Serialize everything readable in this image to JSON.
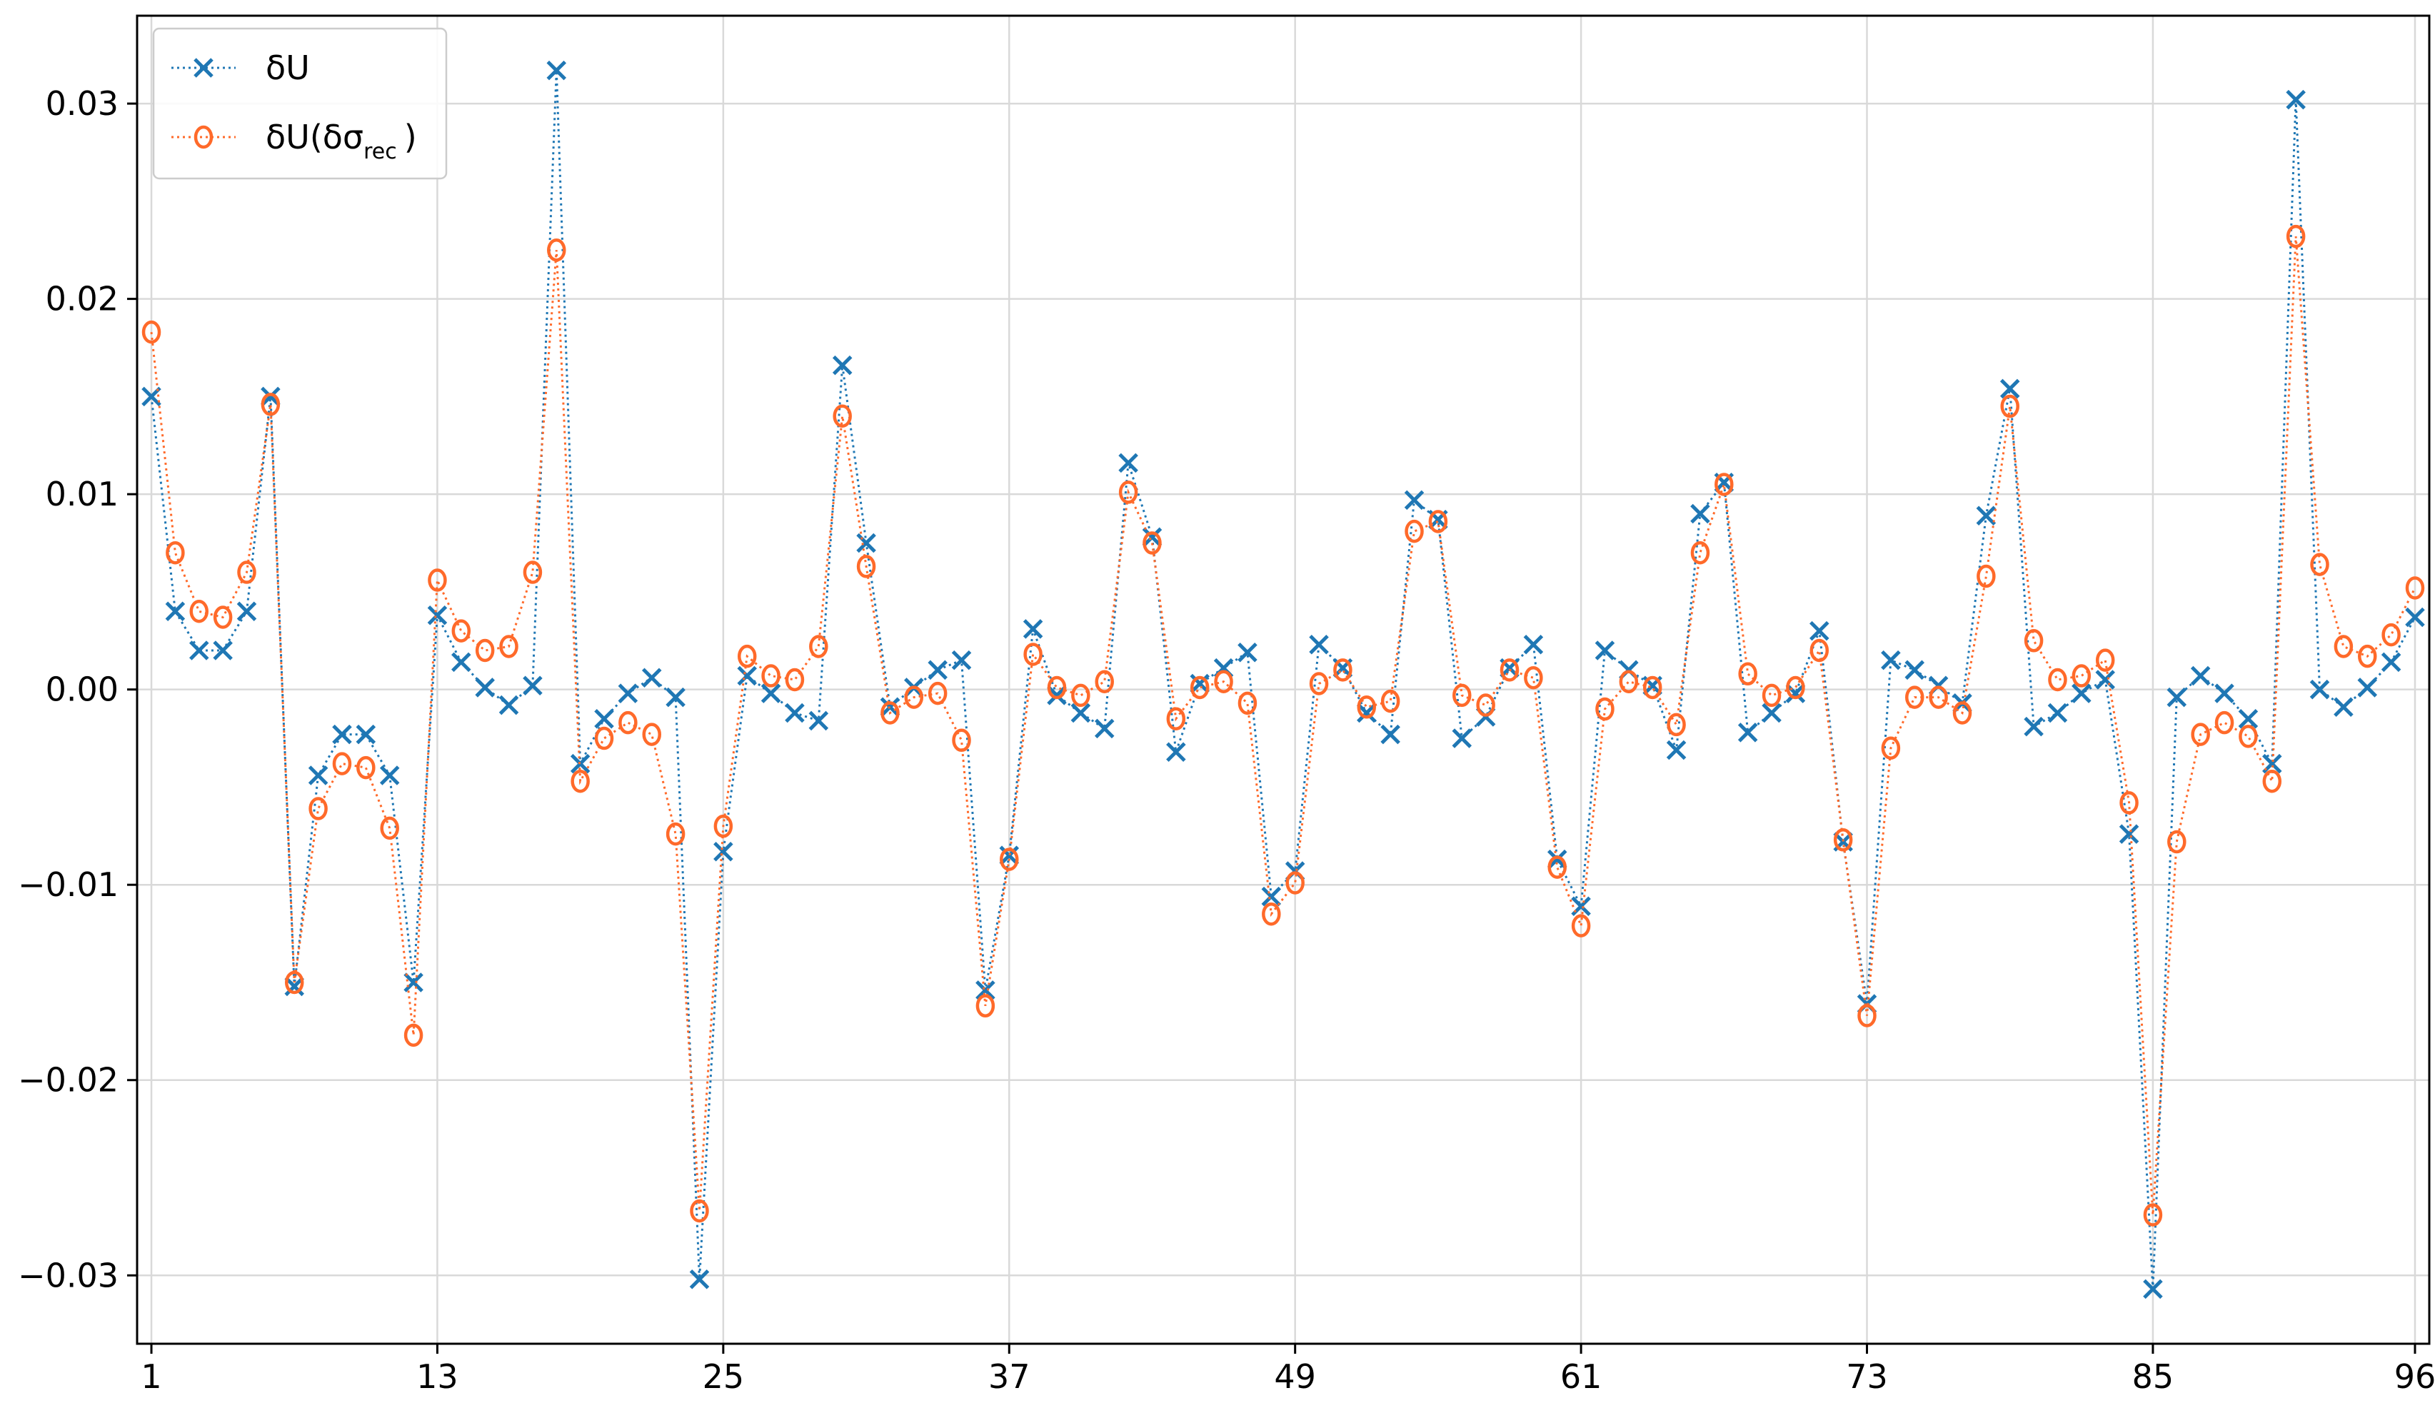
{
  "chart_data": {
    "type": "line",
    "title": "",
    "xlabel": "",
    "ylabel": "",
    "x": [
      1,
      2,
      3,
      4,
      5,
      6,
      7,
      8,
      9,
      10,
      11,
      12,
      13,
      14,
      15,
      16,
      17,
      18,
      19,
      20,
      21,
      22,
      23,
      24,
      25,
      26,
      27,
      28,
      29,
      30,
      31,
      32,
      33,
      34,
      35,
      36,
      37,
      38,
      39,
      40,
      41,
      42,
      43,
      44,
      45,
      46,
      47,
      48,
      49,
      50,
      51,
      52,
      53,
      54,
      55,
      56,
      57,
      58,
      59,
      60,
      61,
      62,
      63,
      64,
      65,
      66,
      67,
      68,
      69,
      70,
      71,
      72,
      73,
      74,
      75,
      76,
      77,
      78,
      79,
      80,
      81,
      82,
      83,
      84,
      85,
      86,
      87,
      88,
      89,
      90,
      91,
      92,
      93,
      94,
      95,
      96
    ],
    "xticks": [
      1,
      13,
      25,
      37,
      49,
      61,
      73,
      85,
      96
    ],
    "xtick_labels": [
      "1",
      "13",
      "25",
      "37",
      "49",
      "61",
      "73",
      "85",
      "96"
    ],
    "yticks": [
      -0.03,
      -0.02,
      -0.01,
      0.0,
      0.01,
      0.02,
      0.03
    ],
    "ytick_labels": [
      "−0.03",
      "−0.02",
      "−0.01",
      "0.00",
      "0.01",
      "0.02",
      "0.03"
    ],
    "xlim": [
      0.4,
      96.6
    ],
    "ylim": [
      -0.0335,
      0.0345
    ],
    "grid": true,
    "legend_position": "top-left",
    "series": [
      {
        "name": "δU",
        "color": "#1f77b4",
        "marker": "x",
        "linestyle": "dotted",
        "values": [
          0.015,
          0.004,
          0.002,
          0.002,
          0.004,
          0.015,
          -0.0152,
          -0.0044,
          -0.0023,
          -0.0023,
          -0.0044,
          -0.015,
          0.0038,
          0.0014,
          0.0001,
          -0.0008,
          0.0002,
          0.0317,
          -0.0038,
          -0.0015,
          -0.0002,
          0.0006,
          -0.0004,
          -0.0302,
          -0.0083,
          0.0007,
          -0.0002,
          -0.0012,
          -0.0016,
          0.0166,
          0.0075,
          -0.0009,
          0.0001,
          0.001,
          0.0015,
          -0.0154,
          -0.0085,
          0.0031,
          -0.0003,
          -0.0012,
          -0.002,
          0.0116,
          0.0078,
          -0.0032,
          0.0003,
          0.0011,
          0.0019,
          -0.0106,
          -0.0093,
          0.0023,
          0.0011,
          -0.0012,
          -0.0023,
          0.0097,
          0.0087,
          -0.0025,
          -0.0014,
          0.0011,
          0.0023,
          -0.0087,
          -0.0111,
          0.002,
          0.001,
          0.0002,
          -0.0031,
          0.009,
          0.0106,
          -0.0022,
          -0.0012,
          -0.0002,
          0.003,
          -0.0078,
          -0.0161,
          0.0015,
          0.001,
          0.0002,
          -0.0007,
          0.0089,
          0.0154,
          -0.0019,
          -0.0012,
          -0.0002,
          0.0005,
          -0.0074,
          -0.0307,
          -0.0004,
          0.0007,
          -0.0002,
          -0.0015,
          -0.0038,
          0.0302,
          0.0,
          -0.0009,
          0.0001,
          0.0014,
          0.0037
        ]
      },
      {
        "name": "δU(δσ",
        "name_subscript": "rec",
        "name_suffix": ")",
        "color": "#ff6a2a",
        "marker": "o",
        "linestyle": "dotted",
        "values": [
          0.0183,
          0.007,
          0.004,
          0.0037,
          0.006,
          0.0146,
          -0.015,
          -0.0061,
          -0.0038,
          -0.004,
          -0.0071,
          -0.0177,
          0.0056,
          0.003,
          0.002,
          0.0022,
          0.006,
          0.0225,
          -0.0047,
          -0.0025,
          -0.0017,
          -0.0023,
          -0.0074,
          -0.0267,
          -0.007,
          0.0017,
          0.0007,
          0.0005,
          0.0022,
          0.014,
          0.0063,
          -0.0012,
          -0.0004,
          -0.0002,
          -0.0026,
          -0.0162,
          -0.0087,
          0.0018,
          0.0001,
          -0.0003,
          0.0004,
          0.0101,
          0.0075,
          -0.0015,
          0.0001,
          0.0004,
          -0.0007,
          -0.0115,
          -0.0099,
          0.0003,
          0.001,
          -0.0009,
          -0.0006,
          0.0081,
          0.0086,
          -0.0003,
          -0.0008,
          0.001,
          0.0006,
          -0.0091,
          -0.0121,
          -0.001,
          0.0004,
          0.0001,
          -0.0018,
          0.007,
          0.0105,
          0.0008,
          -0.0003,
          0.0001,
          0.002,
          -0.0077,
          -0.0167,
          -0.003,
          -0.0004,
          -0.0004,
          -0.0012,
          0.0058,
          0.0145,
          0.0025,
          0.0005,
          0.0007,
          0.0015,
          -0.0058,
          -0.0269,
          -0.0078,
          -0.0023,
          -0.0017,
          -0.0024,
          -0.0047,
          0.0232,
          0.0064,
          0.0022,
          0.0017,
          0.0028,
          0.0052
        ]
      }
    ]
  }
}
